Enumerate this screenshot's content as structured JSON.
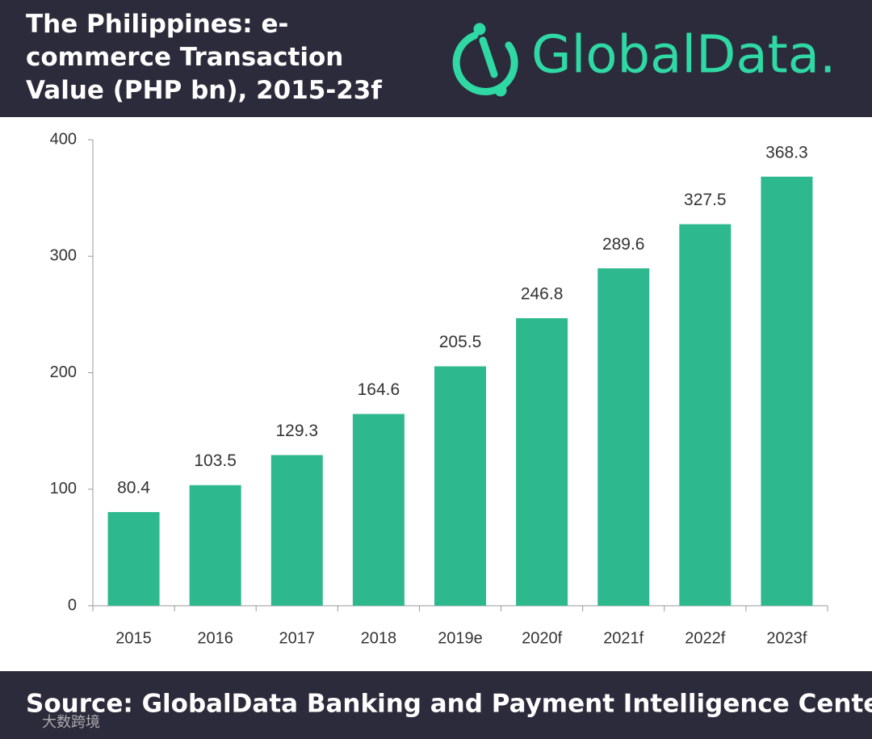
{
  "chart_data": {
    "type": "bar",
    "title": "The Philippines: e-commerce Transaction Value (PHP bn), 2015-23f",
    "brand": "GlobalData.",
    "source": "Source: GlobalData Banking and Payment Intelligence Center",
    "watermark": "大数跨境",
    "categories": [
      "2015",
      "2016",
      "2017",
      "2018",
      "2019e",
      "2020f",
      "2021f",
      "2022f",
      "2023f"
    ],
    "values": [
      80.4,
      103.5,
      129.3,
      164.6,
      205.5,
      246.8,
      289.6,
      327.5,
      368.3
    ],
    "color": "#2eb88e",
    "ylim": [
      0,
      400
    ],
    "yticks": [
      0,
      100,
      200,
      300,
      400
    ],
    "grid": false
  }
}
